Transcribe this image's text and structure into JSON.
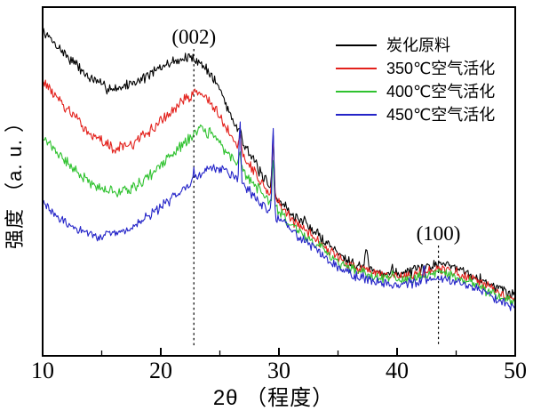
{
  "chart_data": {
    "type": "line",
    "title": "",
    "xlabel": "2θ （程度）",
    "ylabel": "强度 （a. u. ）",
    "x_range": [
      10,
      50
    ],
    "x_ticks": [
      10,
      20,
      30,
      40,
      50
    ],
    "x_minor_ticks": [
      15,
      25,
      35,
      45
    ],
    "y_axis": "arbitrary units (a.u.), no tick labels",
    "grid": false,
    "legend_position": "top-right",
    "annotations": [
      {
        "label": "(002)",
        "x": 22.8
      },
      {
        "label": "(100)",
        "x": 43.5
      }
    ],
    "series": [
      {
        "label": "炭化原料",
        "color": "#000000",
        "seed": 7,
        "noise": 1.9,
        "keypoints": [
          [
            10,
            93.1
          ],
          [
            12,
            86.2
          ],
          [
            14,
            79.6
          ],
          [
            15.5,
            76.8
          ],
          [
            16.5,
            76.8
          ],
          [
            18.2,
            79.1
          ],
          [
            19.5,
            81.6
          ],
          [
            21,
            84.4
          ],
          [
            22.3,
            85.5
          ],
          [
            23,
            85.0
          ],
          [
            24,
            81.9
          ],
          [
            25,
            76.5
          ],
          [
            26,
            68.4
          ],
          [
            26.7,
            63.5
          ],
          [
            27.5,
            58.2
          ],
          [
            28.5,
            52.0
          ],
          [
            29.5,
            46.9
          ],
          [
            31,
            40.8
          ],
          [
            32.2,
            37.8
          ],
          [
            33.5,
            34.2
          ],
          [
            35,
            29.6
          ],
          [
            36.5,
            26.3
          ],
          [
            37.4,
            25.0
          ],
          [
            38.5,
            24.0
          ],
          [
            40,
            23.5
          ],
          [
            41.8,
            24.5
          ],
          [
            43.5,
            26.8
          ],
          [
            45,
            25.5
          ],
          [
            46.5,
            23.0
          ],
          [
            48,
            20.4
          ],
          [
            50,
            17.3
          ]
        ],
        "spikes": [
          [
            26.7,
            2.5,
            0.1
          ],
          [
            29.5,
            15.6,
            0.11
          ],
          [
            32.2,
            2.0,
            0.12
          ],
          [
            37.4,
            6.1,
            0.15
          ],
          [
            39.6,
            2.2,
            0.1
          ]
        ]
      },
      {
        "label": "350℃空气活化",
        "color": "#e3211c",
        "seed": 13,
        "noise": 1.9,
        "keypoints": [
          [
            10,
            79.1
          ],
          [
            12,
            70.9
          ],
          [
            14,
            63.8
          ],
          [
            16,
            59.4
          ],
          [
            17.5,
            60.5
          ],
          [
            19,
            64.3
          ],
          [
            20.5,
            68.9
          ],
          [
            22,
            73.5
          ],
          [
            23.1,
            75.8
          ],
          [
            24,
            73.7
          ],
          [
            25,
            68.4
          ],
          [
            26,
            62.5
          ],
          [
            26.7,
            59.5
          ],
          [
            27.5,
            55.1
          ],
          [
            28.5,
            49.7
          ],
          [
            29.5,
            45.7
          ],
          [
            31,
            39.3
          ],
          [
            33.5,
            32.7
          ],
          [
            35,
            28.1
          ],
          [
            36.5,
            25.3
          ],
          [
            38,
            23.5
          ],
          [
            40,
            22.4
          ],
          [
            41.8,
            23.5
          ],
          [
            43.5,
            25.0
          ],
          [
            45,
            23.7
          ],
          [
            46.5,
            21.7
          ],
          [
            48,
            19.1
          ],
          [
            50,
            16.1
          ]
        ],
        "spikes": [
          [
            26.7,
            4.6,
            0.1
          ],
          [
            29.5,
            18.1,
            0.1
          ]
        ]
      },
      {
        "label": "400℃空气活化",
        "color": "#2fc22f",
        "seed": 21,
        "noise": 1.9,
        "keypoints": [
          [
            10,
            63.0
          ],
          [
            12,
            55.6
          ],
          [
            14,
            49.7
          ],
          [
            16,
            46.9
          ],
          [
            17.5,
            48.0
          ],
          [
            19,
            51.5
          ],
          [
            20.5,
            56.1
          ],
          [
            22,
            61.2
          ],
          [
            23.4,
            65.1
          ],
          [
            24.5,
            63.0
          ],
          [
            25.5,
            58.7
          ],
          [
            26.7,
            54.4
          ],
          [
            27.5,
            51.0
          ],
          [
            28.5,
            46.9
          ],
          [
            29.5,
            43.4
          ],
          [
            31,
            37.8
          ],
          [
            33.5,
            31.1
          ],
          [
            35,
            26.8
          ],
          [
            36.5,
            24.2
          ],
          [
            38,
            22.7
          ],
          [
            40,
            21.7
          ],
          [
            41.8,
            22.4
          ],
          [
            43.5,
            24.0
          ],
          [
            45,
            22.7
          ],
          [
            46.5,
            20.7
          ],
          [
            48,
            18.1
          ],
          [
            50,
            15.1
          ]
        ],
        "spikes": [
          [
            26.7,
            4.6,
            0.1
          ],
          [
            29.5,
            14.0,
            0.1
          ],
          [
            39.6,
            1.8,
            0.1
          ]
        ]
      },
      {
        "label": "450℃空气活化",
        "color": "#2424c8",
        "seed": 29,
        "noise": 1.7,
        "keypoints": [
          [
            10,
            44.1
          ],
          [
            11.5,
            39.0
          ],
          [
            13,
            36.0
          ],
          [
            15,
            34.2
          ],
          [
            17,
            35.7
          ],
          [
            19,
            40.1
          ],
          [
            20.5,
            43.9
          ],
          [
            22,
            48.5
          ],
          [
            22.8,
            50.5
          ],
          [
            24,
            53.6
          ],
          [
            24.8,
            54.3
          ],
          [
            25.5,
            52.8
          ],
          [
            26.7,
            50.1
          ],
          [
            27.5,
            47.2
          ],
          [
            28.5,
            43.4
          ],
          [
            29.5,
            40.6
          ],
          [
            31,
            36.2
          ],
          [
            33.5,
            29.6
          ],
          [
            35,
            25.5
          ],
          [
            36.5,
            23.0
          ],
          [
            38,
            21.4
          ],
          [
            40,
            20.4
          ],
          [
            42.3,
            21.2
          ],
          [
            43.5,
            22.4
          ],
          [
            45,
            21.4
          ],
          [
            46.5,
            19.6
          ],
          [
            48,
            17.1
          ],
          [
            50,
            14.0
          ]
        ],
        "spikes": [
          [
            22.8,
            3.6,
            0.08
          ],
          [
            26.7,
            17.8,
            0.1
          ],
          [
            29.5,
            26.5,
            0.11
          ],
          [
            42.3,
            4.6,
            0.1
          ]
        ]
      }
    ]
  }
}
